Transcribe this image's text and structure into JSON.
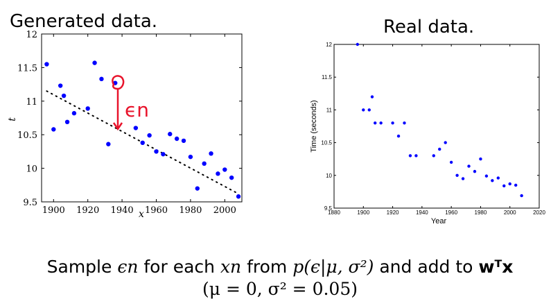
{
  "chart_data": [
    {
      "type": "scatter",
      "title": "Generated data.",
      "xlabel": "x",
      "ylabel": "t",
      "xlim": [
        1893,
        2010
      ],
      "ylim": [
        9.5,
        12
      ],
      "xticks": [
        1900,
        1920,
        1940,
        1960,
        1980,
        2000
      ],
      "yticks": [
        9.5,
        10,
        10.5,
        11,
        11.5,
        12
      ],
      "x": [
        1896,
        1900,
        1904,
        1906,
        1908,
        1912,
        1920,
        1924,
        1928,
        1932,
        1936,
        1948,
        1952,
        1956,
        1960,
        1964,
        1968,
        1972,
        1976,
        1980,
        1984,
        1988,
        1992,
        1996,
        2000,
        2004,
        2008
      ],
      "y": [
        11.55,
        10.58,
        11.23,
        11.08,
        10.69,
        10.82,
        10.89,
        11.57,
        11.33,
        10.36,
        11.27,
        10.6,
        10.38,
        10.49,
        10.25,
        10.21,
        10.51,
        10.44,
        10.41,
        10.17,
        9.7,
        10.07,
        10.22,
        9.92,
        9.98,
        9.86,
        9.58
      ],
      "trend_line": {
        "x": [
          1896,
          2008
        ],
        "y": [
          11.15,
          9.62
        ]
      },
      "annotation": {
        "text": "ϵn",
        "x": 1936
      }
    },
    {
      "type": "scatter",
      "title": "Real data.",
      "xlabel": "Year",
      "ylabel": "Time (seconds)",
      "xlim": [
        1880,
        2020
      ],
      "ylim": [
        9.5,
        12
      ],
      "xticks": [
        1880,
        1900,
        1920,
        1940,
        1960,
        1980,
        2000,
        2020
      ],
      "yticks": [
        9.5,
        10,
        10.5,
        11,
        11.5,
        12
      ],
      "x": [
        1896,
        1900,
        1904,
        1906,
        1908,
        1912,
        1920,
        1924,
        1928,
        1932,
        1936,
        1948,
        1952,
        1956,
        1960,
        1964,
        1968,
        1972,
        1976,
        1980,
        1984,
        1988,
        1992,
        1996,
        2000,
        2004,
        2008
      ],
      "y": [
        12.0,
        11.0,
        11.0,
        11.2,
        10.8,
        10.8,
        10.8,
        10.6,
        10.8,
        10.3,
        10.3,
        10.3,
        10.4,
        10.5,
        10.2,
        10.0,
        9.95,
        10.14,
        10.06,
        10.25,
        9.99,
        9.92,
        9.96,
        9.84,
        9.87,
        9.85,
        9.69
      ]
    }
  ],
  "caption": {
    "line1_prefix": "Sample ",
    "line1_eps": "ϵn",
    "line1_mid": " for each ",
    "line1_x": "xn",
    "line1_from": " from ",
    "line1_p": "p(ϵ|μ, σ²)",
    "line1_add": " and add to ",
    "line1_wtx": "wᵀx",
    "line2": "(μ = 0, σ² = 0.05)"
  },
  "colors": {
    "point": "#0000ff",
    "annotation": "#e8132b",
    "trend": "#000000"
  }
}
